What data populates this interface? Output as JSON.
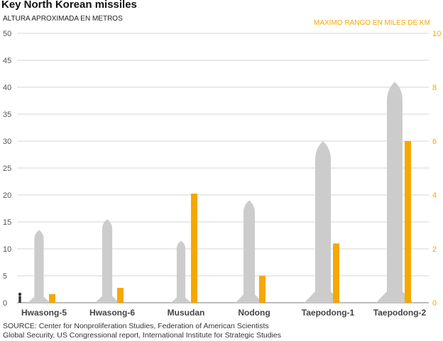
{
  "title": "Key North Korean missiles",
  "source_lines": [
    "SOURCE: Center for Nonproliferation Studies, Federation of American Scientists",
    "Global Security, US Congressional report, International Institute for Strategic Studies"
  ],
  "chart_data": {
    "type": "bar",
    "categories": [
      "Hwasong-5",
      "Hwasong-6",
      "Musudan",
      "Nodong",
      "Taepodong-1",
      "Taepodong-2"
    ],
    "left_axis": {
      "label": "ALTURA APROXIMADA EN METROS",
      "ylim": [
        0,
        50
      ],
      "ticks": [
        0,
        5,
        10,
        15,
        20,
        25,
        30,
        35,
        40,
        45,
        50
      ]
    },
    "right_axis": {
      "label": "MAXIMO RANGO EN MILES DE KM",
      "ylim": [
        0,
        10
      ],
      "ticks": [
        0,
        2,
        4,
        6,
        8,
        10
      ],
      "color": "#f5a800"
    },
    "series": [
      {
        "values": [
          13.5,
          15.5,
          11.5,
          19,
          30,
          41
        ],
        "axis": "left",
        "mark": "missile-silhouette",
        "color": "#cccccc"
      },
      {
        "values": [
          0.32,
          0.55,
          4.05,
          1.0,
          2.2,
          6.0
        ],
        "axis": "right",
        "mark": "bar",
        "color": "#f5a800"
      }
    ],
    "grid": true,
    "legend": "none"
  }
}
